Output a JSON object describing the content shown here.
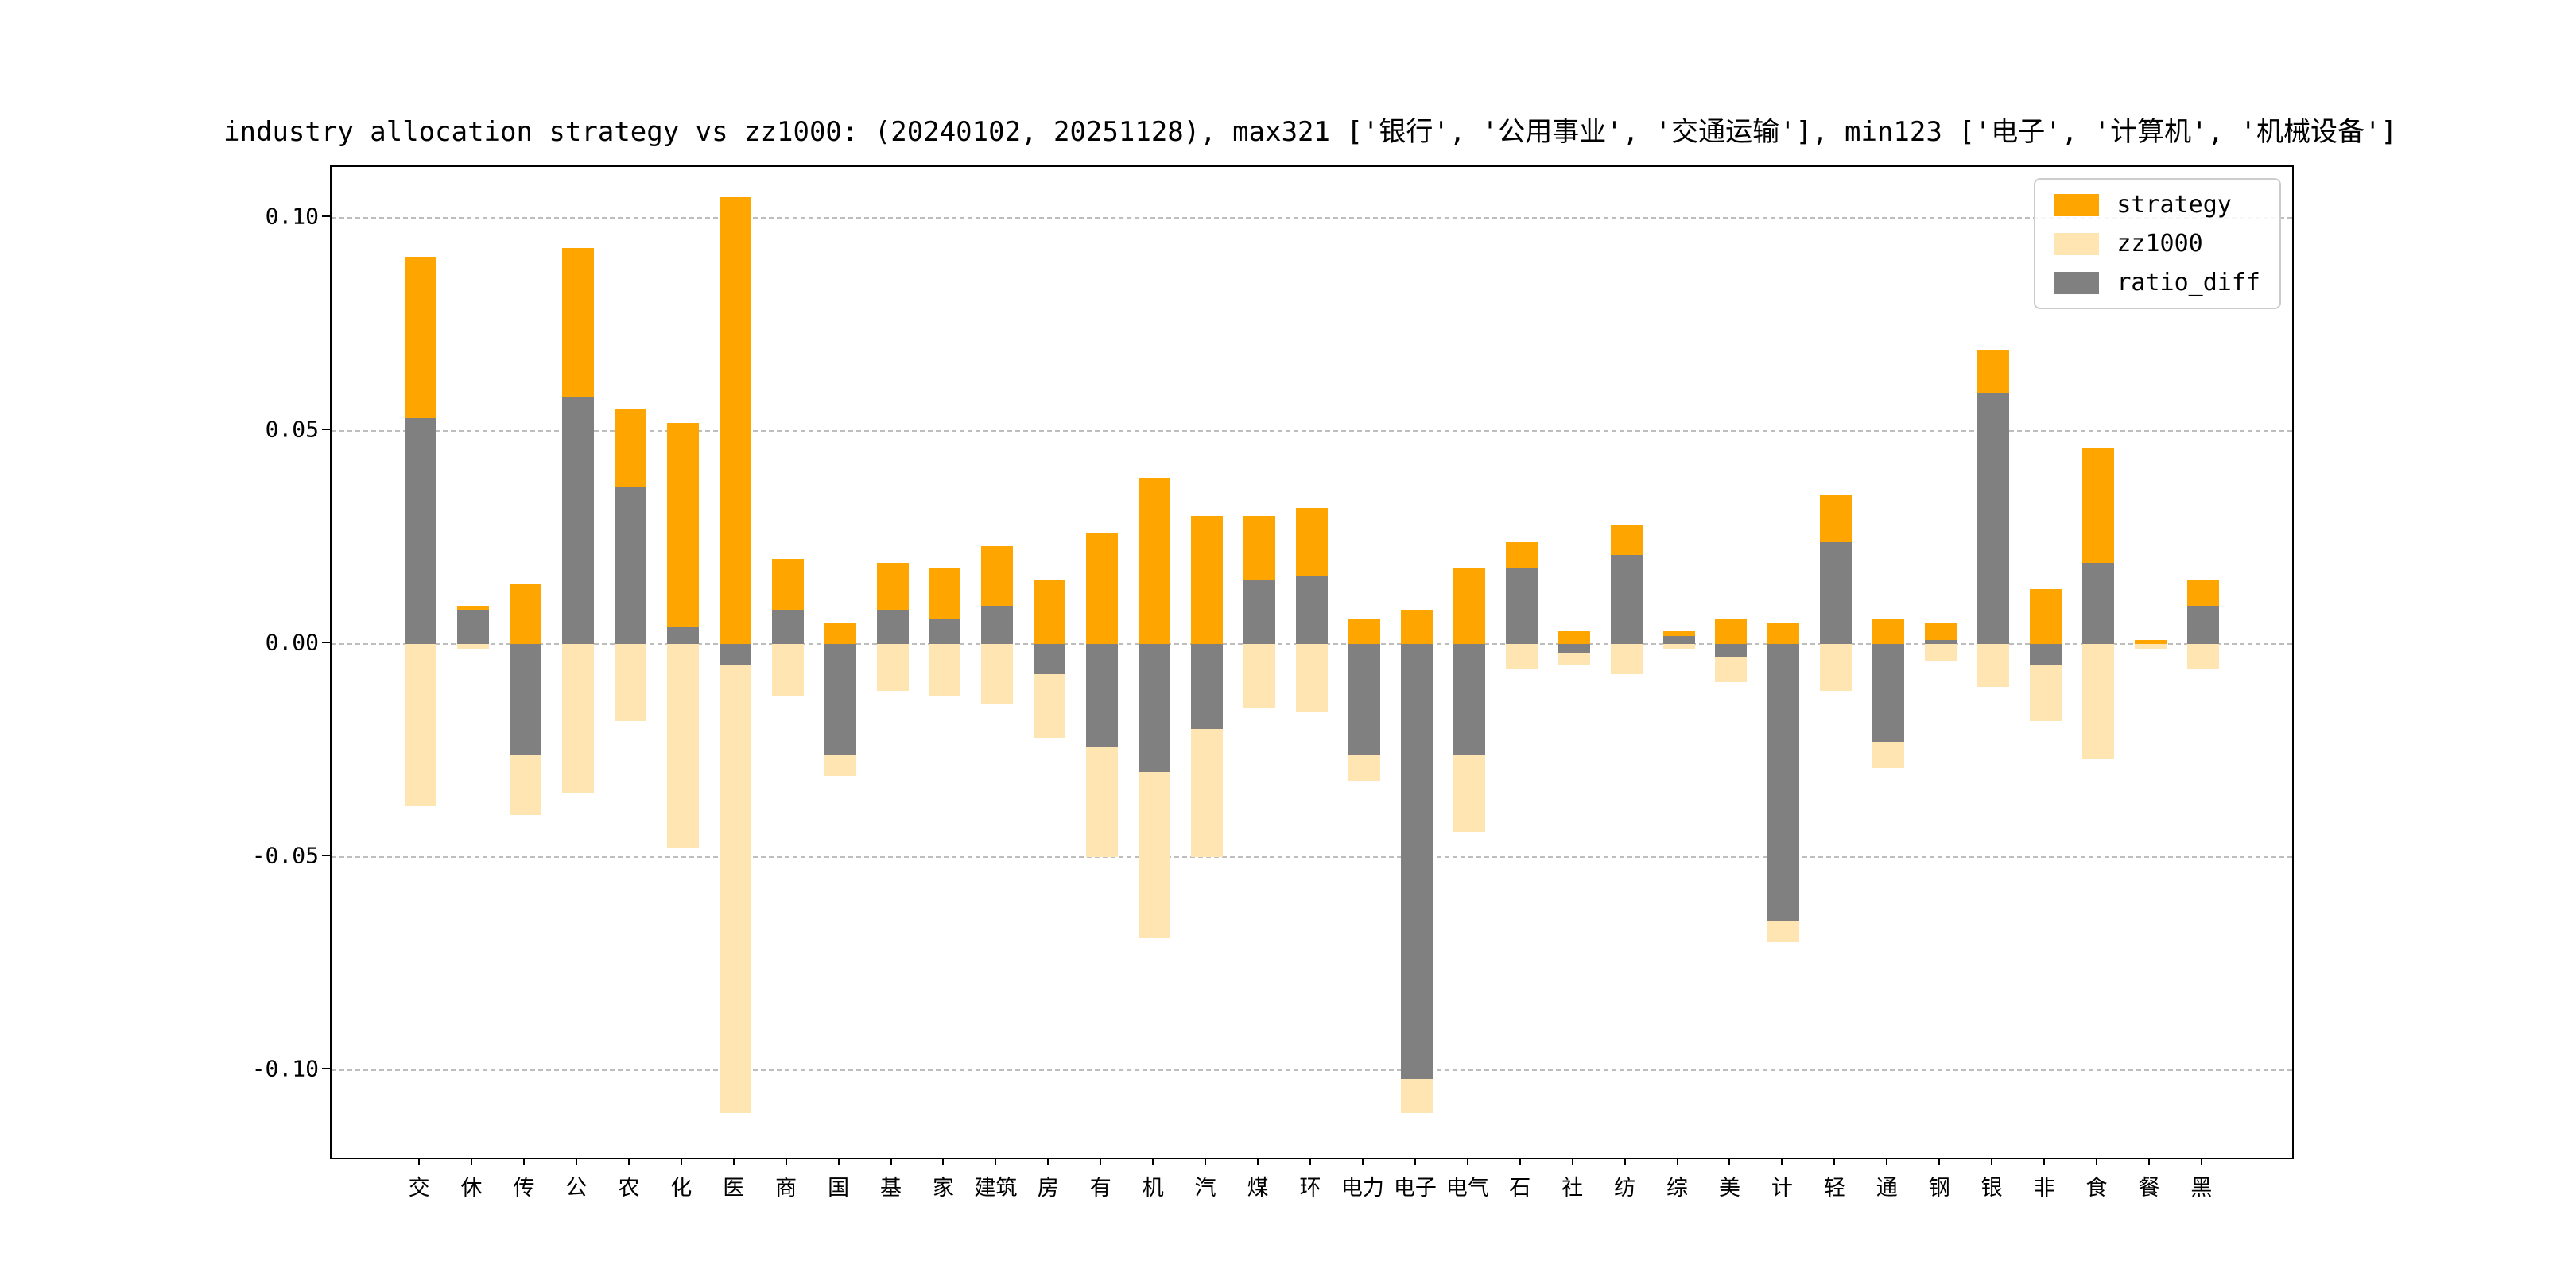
{
  "chart_data": {
    "type": "bar",
    "title": "industry allocation strategy vs zz1000: (20240102, 20251128), max321 ['银行', '公用事业', '交通运输'], min123 ['电子', '计算机', '机械设备']",
    "xlabel": "",
    "ylabel": "",
    "categories": [
      "交",
      "休",
      "传",
      "公",
      "农",
      "化",
      "医",
      "商",
      "国",
      "基",
      "家",
      "建筑",
      "房",
      "有",
      "机",
      "汽",
      "煤",
      "环",
      "电力",
      "电子",
      "电气",
      "石",
      "社",
      "纺",
      "综",
      "美",
      "计",
      "轻",
      "通",
      "钢",
      "银",
      "非",
      "食",
      "餐",
      "黑"
    ],
    "series": [
      {
        "name": "strategy",
        "color": "#FFA500",
        "direction": 1,
        "values": [
          0.091,
          0.009,
          0.014,
          0.093,
          0.055,
          0.052,
          0.105,
          0.02,
          0.005,
          0.019,
          0.018,
          0.023,
          0.015,
          0.026,
          0.039,
          0.03,
          0.03,
          0.032,
          0.006,
          0.008,
          0.018,
          0.024,
          0.003,
          0.028,
          0.003,
          0.006,
          0.005,
          0.035,
          0.006,
          0.005,
          0.069,
          0.013,
          0.046,
          0.001,
          0.015
        ]
      },
      {
        "name": "zz1000",
        "color": "#FFE5B2",
        "direction": -1,
        "values": [
          0.038,
          0.001,
          0.04,
          0.035,
          0.018,
          0.048,
          0.11,
          0.012,
          0.031,
          0.011,
          0.012,
          0.014,
          0.022,
          0.05,
          0.069,
          0.05,
          0.015,
          0.016,
          0.032,
          0.11,
          0.044,
          0.006,
          0.005,
          0.007,
          0.001,
          0.009,
          0.07,
          0.011,
          0.029,
          0.004,
          0.01,
          0.018,
          0.027,
          0.001,
          0.006
        ]
      },
      {
        "name": "ratio_diff",
        "color": "#808080",
        "direction": 1,
        "values": [
          0.053,
          0.008,
          -0.026,
          0.058,
          0.037,
          0.004,
          -0.005,
          0.008,
          -0.026,
          0.008,
          0.006,
          0.009,
          -0.007,
          -0.024,
          -0.03,
          -0.02,
          0.015,
          0.016,
          -0.026,
          -0.102,
          -0.026,
          0.018,
          -0.002,
          0.021,
          0.002,
          -0.003,
          -0.065,
          0.024,
          -0.023,
          0.001,
          0.059,
          -0.005,
          0.019,
          0.0,
          0.009
        ]
      }
    ],
    "yticks": [
      0.1,
      0.05,
      0.0,
      -0.05,
      -0.1
    ],
    "ytick_labels": [
      "0.10",
      "0.05",
      "0.00",
      "-0.05",
      "-0.10"
    ],
    "ylim": [
      -0.1205,
      0.112
    ],
    "grid": "dashed horizontal",
    "legend_position": "upper right",
    "note": "zz1000 bars plotted downward as negative; ratio_diff = strategy - zz1000"
  }
}
